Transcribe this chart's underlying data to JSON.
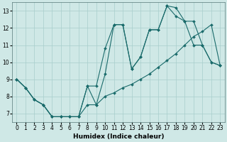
{
  "xlabel": "Humidex (Indice chaleur)",
  "xlim": [
    -0.5,
    23.5
  ],
  "ylim": [
    6.5,
    13.5
  ],
  "xticks": [
    0,
    1,
    2,
    3,
    4,
    5,
    6,
    7,
    8,
    9,
    10,
    11,
    12,
    13,
    14,
    15,
    16,
    17,
    18,
    19,
    20,
    21,
    22,
    23
  ],
  "yticks": [
    7,
    8,
    9,
    10,
    11,
    12,
    13
  ],
  "bg_color": "#cfe8e6",
  "line_color": "#1a6b6b",
  "line1_x": [
    0,
    1,
    2,
    3,
    4,
    5,
    6,
    7,
    8,
    9,
    10,
    11,
    12,
    13,
    14,
    15,
    16,
    17,
    18,
    19,
    20,
    21,
    22,
    23
  ],
  "line1_y": [
    9.0,
    8.5,
    7.8,
    7.5,
    6.8,
    6.8,
    6.8,
    6.8,
    7.5,
    7.5,
    8.0,
    8.2,
    8.5,
    8.7,
    9.0,
    9.3,
    9.7,
    10.1,
    10.5,
    11.0,
    11.5,
    11.8,
    12.2,
    9.8
  ],
  "line2_x": [
    0,
    1,
    2,
    3,
    4,
    5,
    6,
    7,
    8,
    9,
    10,
    11,
    12,
    13,
    14,
    15,
    16,
    17,
    18,
    19,
    20,
    21,
    22,
    23
  ],
  "line2_y": [
    9.0,
    8.5,
    7.8,
    7.5,
    6.8,
    6.8,
    6.8,
    6.8,
    8.6,
    8.6,
    10.8,
    12.2,
    12.2,
    9.6,
    10.3,
    11.9,
    11.9,
    13.3,
    12.7,
    12.4,
    12.4,
    11.0,
    10.0,
    9.8
  ],
  "line3_x": [
    0,
    1,
    2,
    3,
    4,
    5,
    6,
    7,
    8,
    9,
    10,
    11,
    12,
    13,
    14,
    15,
    16,
    17,
    18,
    19,
    20,
    21,
    22,
    23
  ],
  "line3_y": [
    9.0,
    8.5,
    7.8,
    7.5,
    6.8,
    6.8,
    6.8,
    6.8,
    8.6,
    7.5,
    9.3,
    12.2,
    12.2,
    9.6,
    10.3,
    11.9,
    11.9,
    13.3,
    13.2,
    12.4,
    11.0,
    11.0,
    10.0,
    9.8
  ],
  "grid_color": "#a8cecc",
  "axis_fontsize": 6.5,
  "tick_fontsize": 5.5,
  "marker_size": 2.0,
  "line_width": 0.8
}
